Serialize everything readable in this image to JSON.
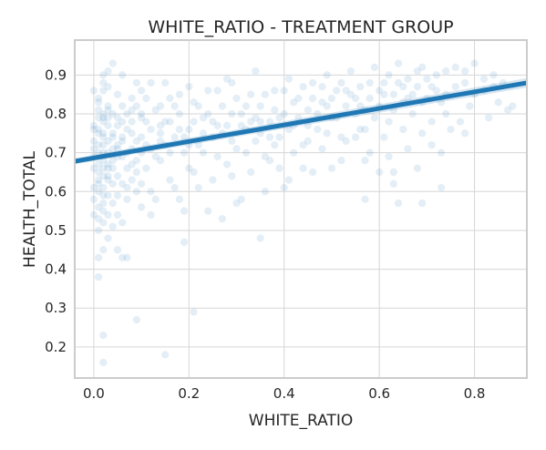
{
  "chart_data": {
    "type": "scatter",
    "title": "WHITE_RATIO - TREATMENT GROUP",
    "xlabel": "WHITE_RATIO",
    "ylabel": "HEALTH_TOTAL",
    "xlim": [
      -0.04,
      0.91
    ],
    "ylim": [
      0.12,
      0.99
    ],
    "xticks": [
      0.0,
      0.2,
      0.4,
      0.6,
      0.8
    ],
    "xtick_labels": [
      "0.0",
      "0.2",
      "0.4",
      "0.6",
      "0.8"
    ],
    "yticks": [
      0.2,
      0.3,
      0.4,
      0.5,
      0.6,
      0.7,
      0.8,
      0.9
    ],
    "ytick_labels": [
      "0.2",
      "0.3",
      "0.4",
      "0.5",
      "0.6",
      "0.7",
      "0.8",
      "0.9"
    ],
    "grid": true,
    "point_color": "#1f77b4",
    "point_alpha": 0.12,
    "line_color": "#1f77b4",
    "regression": {
      "x": [
        -0.04,
        0.91
      ],
      "y": [
        0.678,
        0.88
      ]
    },
    "points": [
      [
        0.01,
        0.76
      ],
      [
        0.02,
        0.74
      ],
      [
        0.01,
        0.72
      ],
      [
        0.03,
        0.7
      ],
      [
        0.02,
        0.68
      ],
      [
        0.0,
        0.73
      ],
      [
        0.01,
        0.65
      ],
      [
        0.03,
        0.77
      ],
      [
        0.02,
        0.8
      ],
      [
        0.01,
        0.62
      ],
      [
        0.0,
        0.58
      ],
      [
        0.02,
        0.55
      ],
      [
        0.01,
        0.6
      ],
      [
        0.03,
        0.66
      ],
      [
        0.04,
        0.71
      ],
      [
        0.02,
        0.78
      ],
      [
        0.01,
        0.83
      ],
      [
        0.0,
        0.69
      ],
      [
        0.03,
        0.63
      ],
      [
        0.02,
        0.57
      ],
      [
        0.01,
        0.53
      ],
      [
        0.04,
        0.75
      ],
      [
        0.05,
        0.72
      ],
      [
        0.03,
        0.82
      ],
      [
        0.02,
        0.86
      ],
      [
        0.01,
        0.7
      ],
      [
        0.0,
        0.66
      ],
      [
        0.02,
        0.64
      ],
      [
        0.03,
        0.59
      ],
      [
        0.01,
        0.56
      ],
      [
        0.04,
        0.68
      ],
      [
        0.05,
        0.79
      ],
      [
        0.06,
        0.74
      ],
      [
        0.02,
        0.72
      ],
      [
        0.01,
        0.79
      ],
      [
        0.0,
        0.76
      ],
      [
        0.03,
        0.73
      ],
      [
        0.02,
        0.61
      ],
      [
        0.04,
        0.57
      ],
      [
        0.05,
        0.64
      ],
      [
        0.06,
        0.69
      ],
      [
        0.07,
        0.76
      ],
      [
        0.08,
        0.81
      ],
      [
        0.03,
        0.87
      ],
      [
        0.02,
        0.9
      ],
      [
        0.01,
        0.84
      ],
      [
        0.06,
        0.62
      ],
      [
        0.07,
        0.58
      ],
      [
        0.05,
        0.54
      ],
      [
        0.04,
        0.51
      ],
      [
        0.03,
        0.48
      ],
      [
        0.02,
        0.45
      ],
      [
        0.01,
        0.43
      ],
      [
        0.06,
        0.43
      ],
      [
        0.07,
        0.43
      ],
      [
        0.05,
        0.45
      ],
      [
        0.08,
        0.67
      ],
      [
        0.09,
        0.73
      ],
      [
        0.1,
        0.79
      ],
      [
        0.11,
        0.84
      ],
      [
        0.09,
        0.88
      ],
      [
        0.1,
        0.7
      ],
      [
        0.12,
        0.76
      ],
      [
        0.11,
        0.66
      ],
      [
        0.13,
        0.81
      ],
      [
        0.14,
        0.73
      ],
      [
        0.12,
        0.6
      ],
      [
        0.1,
        0.56
      ],
      [
        0.15,
        0.78
      ],
      [
        0.16,
        0.84
      ],
      [
        0.14,
        0.68
      ],
      [
        0.17,
        0.74
      ],
      [
        0.18,
        0.8
      ],
      [
        0.16,
        0.63
      ],
      [
        0.19,
        0.7
      ],
      [
        0.2,
        0.76
      ],
      [
        0.18,
        0.58
      ],
      [
        0.15,
        0.88
      ],
      [
        0.21,
        0.83
      ],
      [
        0.22,
        0.72
      ],
      [
        0.2,
        0.66
      ],
      [
        0.23,
        0.79
      ],
      [
        0.24,
        0.86
      ],
      [
        0.22,
        0.61
      ],
      [
        0.25,
        0.74
      ],
      [
        0.26,
        0.69
      ],
      [
        0.24,
        0.55
      ],
      [
        0.27,
        0.82
      ],
      [
        0.28,
        0.77
      ],
      [
        0.29,
        0.88
      ],
      [
        0.3,
        0.71
      ],
      [
        0.31,
        0.8
      ],
      [
        0.29,
        0.64
      ],
      [
        0.32,
        0.76
      ],
      [
        0.33,
        0.85
      ],
      [
        0.31,
        0.58
      ],
      [
        0.34,
        0.73
      ],
      [
        0.35,
        0.82
      ],
      [
        0.36,
        0.69
      ],
      [
        0.34,
        0.91
      ],
      [
        0.37,
        0.78
      ],
      [
        0.38,
        0.86
      ],
      [
        0.39,
        0.74
      ],
      [
        0.4,
        0.8
      ],
      [
        0.41,
        0.89
      ],
      [
        0.39,
        0.66
      ],
      [
        0.42,
        0.77
      ],
      [
        0.43,
        0.84
      ],
      [
        0.44,
        0.72
      ],
      [
        0.45,
        0.81
      ],
      [
        0.46,
        0.88
      ],
      [
        0.47,
        0.76
      ],
      [
        0.48,
        0.83
      ],
      [
        0.49,
        0.9
      ],
      [
        0.5,
        0.79
      ],
      [
        0.51,
        0.86
      ],
      [
        0.52,
        0.74
      ],
      [
        0.53,
        0.82
      ],
      [
        0.54,
        0.91
      ],
      [
        0.55,
        0.8
      ],
      [
        0.56,
        0.87
      ],
      [
        0.57,
        0.76
      ],
      [
        0.58,
        0.84
      ],
      [
        0.59,
        0.92
      ],
      [
        0.6,
        0.82
      ],
      [
        0.61,
        0.88
      ],
      [
        0.62,
        0.78
      ],
      [
        0.63,
        0.85
      ],
      [
        0.64,
        0.93
      ],
      [
        0.65,
        0.83
      ],
      [
        0.66,
        0.89
      ],
      [
        0.67,
        0.8
      ],
      [
        0.68,
        0.87
      ],
      [
        0.69,
        0.92
      ],
      [
        0.7,
        0.84
      ],
      [
        0.72,
        0.9
      ],
      [
        0.74,
        0.85
      ],
      [
        0.76,
        0.92
      ],
      [
        0.78,
        0.88
      ],
      [
        0.8,
        0.93
      ],
      [
        0.82,
        0.86
      ],
      [
        0.84,
        0.9
      ],
      [
        0.86,
        0.88
      ],
      [
        0.88,
        0.82
      ],
      [
        0.75,
        0.76
      ],
      [
        0.71,
        0.72
      ],
      [
        0.66,
        0.71
      ],
      [
        0.62,
        0.69
      ],
      [
        0.58,
        0.7
      ],
      [
        0.55,
        0.74
      ],
      [
        0.52,
        0.68
      ],
      [
        0.48,
        0.71
      ],
      [
        0.44,
        0.66
      ],
      [
        0.41,
        0.63
      ],
      [
        0.37,
        0.68
      ],
      [
        0.33,
        0.65
      ],
      [
        0.28,
        0.67
      ],
      [
        0.25,
        0.63
      ],
      [
        0.21,
        0.65
      ],
      [
        0.17,
        0.61
      ],
      [
        0.13,
        0.58
      ],
      [
        0.09,
        0.6
      ],
      [
        0.06,
        0.52
      ],
      [
        0.12,
        0.54
      ],
      [
        0.19,
        0.55
      ],
      [
        0.27,
        0.53
      ],
      [
        0.3,
        0.57
      ],
      [
        0.36,
        0.6
      ],
      [
        0.4,
        0.61
      ],
      [
        0.46,
        0.65
      ],
      [
        0.5,
        0.66
      ],
      [
        0.57,
        0.68
      ],
      [
        0.6,
        0.65
      ],
      [
        0.63,
        0.62
      ],
      [
        0.68,
        0.66
      ],
      [
        0.73,
        0.7
      ],
      [
        0.78,
        0.75
      ],
      [
        0.83,
        0.79
      ],
      [
        0.87,
        0.81
      ],
      [
        0.85,
        0.83
      ],
      [
        0.79,
        0.82
      ],
      [
        0.77,
        0.78
      ],
      [
        0.74,
        0.8
      ],
      [
        0.71,
        0.78
      ],
      [
        0.69,
        0.75
      ],
      [
        0.65,
        0.76
      ],
      [
        0.61,
        0.74
      ],
      [
        0.56,
        0.76
      ],
      [
        0.53,
        0.73
      ],
      [
        0.49,
        0.75
      ],
      [
        0.45,
        0.73
      ],
      [
        0.42,
        0.7
      ],
      [
        0.38,
        0.72
      ],
      [
        0.35,
        0.75
      ],
      [
        0.32,
        0.7
      ],
      [
        0.29,
        0.73
      ],
      [
        0.26,
        0.77
      ],
      [
        0.23,
        0.7
      ],
      [
        0.2,
        0.72
      ],
      [
        0.16,
        0.7
      ],
      [
        0.14,
        0.75
      ],
      [
        0.11,
        0.72
      ],
      [
        0.08,
        0.71
      ],
      [
        0.07,
        0.66
      ],
      [
        0.05,
        0.69
      ],
      [
        0.04,
        0.62
      ],
      [
        0.03,
        0.54
      ],
      [
        0.02,
        0.52
      ],
      [
        0.01,
        0.5
      ],
      [
        0.0,
        0.54
      ],
      [
        0.06,
        0.78
      ],
      [
        0.08,
        0.84
      ],
      [
        0.1,
        0.86
      ],
      [
        0.12,
        0.88
      ],
      [
        0.14,
        0.82
      ],
      [
        0.16,
        0.78
      ],
      [
        0.18,
        0.85
      ],
      [
        0.2,
        0.87
      ],
      [
        0.22,
        0.82
      ],
      [
        0.24,
        0.8
      ],
      [
        0.26,
        0.86
      ],
      [
        0.28,
        0.89
      ],
      [
        0.3,
        0.84
      ],
      [
        0.32,
        0.82
      ],
      [
        0.34,
        0.79
      ],
      [
        0.36,
        0.85
      ],
      [
        0.38,
        0.81
      ],
      [
        0.4,
        0.86
      ],
      [
        0.42,
        0.83
      ],
      [
        0.44,
        0.87
      ],
      [
        0.46,
        0.84
      ],
      [
        0.48,
        0.87
      ],
      [
        0.5,
        0.84
      ],
      [
        0.52,
        0.88
      ],
      [
        0.54,
        0.85
      ],
      [
        0.56,
        0.82
      ],
      [
        0.58,
        0.88
      ],
      [
        0.6,
        0.86
      ],
      [
        0.62,
        0.9
      ],
      [
        0.64,
        0.88
      ],
      [
        0.66,
        0.84
      ],
      [
        0.68,
        0.91
      ],
      [
        0.7,
        0.89
      ],
      [
        0.72,
        0.86
      ],
      [
        0.74,
        0.91
      ],
      [
        0.76,
        0.87
      ],
      [
        0.78,
        0.91
      ],
      [
        0.8,
        0.85
      ],
      [
        0.82,
        0.89
      ],
      [
        0.84,
        0.87
      ],
      [
        0.01,
        0.38
      ],
      [
        0.02,
        0.23
      ],
      [
        0.02,
        0.16
      ],
      [
        0.09,
        0.27
      ],
      [
        0.15,
        0.18
      ],
      [
        0.21,
        0.29
      ],
      [
        0.19,
        0.47
      ],
      [
        0.35,
        0.48
      ],
      [
        0.57,
        0.58
      ],
      [
        0.64,
        0.57
      ],
      [
        0.69,
        0.57
      ],
      [
        0.63,
        0.65
      ],
      [
        0.73,
        0.61
      ],
      [
        0.04,
        0.8
      ],
      [
        0.05,
        0.85
      ],
      [
        0.03,
        0.91
      ],
      [
        0.04,
        0.93
      ],
      [
        0.0,
        0.86
      ],
      [
        0.02,
        0.88
      ],
      [
        0.06,
        0.9
      ],
      [
        0.03,
        0.67
      ],
      [
        0.04,
        0.74
      ],
      [
        0.05,
        0.77
      ],
      [
        0.02,
        0.7
      ],
      [
        0.01,
        0.67
      ],
      [
        0.0,
        0.71
      ],
      [
        0.03,
        0.79
      ],
      [
        0.02,
        0.75
      ],
      [
        0.04,
        0.66
      ],
      [
        0.05,
        0.71
      ],
      [
        0.06,
        0.73
      ],
      [
        0.07,
        0.7
      ],
      [
        0.08,
        0.75
      ],
      [
        0.09,
        0.68
      ],
      [
        0.1,
        0.74
      ],
      [
        0.11,
        0.78
      ],
      [
        0.12,
        0.71
      ],
      [
        0.13,
        0.69
      ],
      [
        0.14,
        0.77
      ],
      [
        0.15,
        0.72
      ],
      [
        0.01,
        0.75
      ],
      [
        0.02,
        0.79
      ],
      [
        0.03,
        0.81
      ],
      [
        0.01,
        0.81
      ],
      [
        0.0,
        0.77
      ],
      [
        0.02,
        0.66
      ],
      [
        0.03,
        0.64
      ],
      [
        0.01,
        0.63
      ],
      [
        0.0,
        0.61
      ],
      [
        0.02,
        0.59
      ],
      [
        0.07,
        0.8
      ],
      [
        0.08,
        0.78
      ],
      [
        0.09,
        0.82
      ],
      [
        0.1,
        0.8
      ],
      [
        0.06,
        0.82
      ],
      [
        0.05,
        0.59
      ],
      [
        0.07,
        0.61
      ],
      [
        0.08,
        0.63
      ],
      [
        0.09,
        0.65
      ],
      [
        0.1,
        0.62
      ],
      [
        0.17,
        0.82
      ],
      [
        0.18,
        0.76
      ],
      [
        0.19,
        0.74
      ],
      [
        0.21,
        0.78
      ],
      [
        0.23,
        0.75
      ],
      [
        0.25,
        0.78
      ],
      [
        0.27,
        0.75
      ],
      [
        0.29,
        0.8
      ],
      [
        0.31,
        0.77
      ],
      [
        0.33,
        0.78
      ],
      [
        0.35,
        0.78
      ],
      [
        0.37,
        0.74
      ],
      [
        0.39,
        0.79
      ],
      [
        0.41,
        0.76
      ],
      [
        0.43,
        0.79
      ],
      [
        0.45,
        0.77
      ],
      [
        0.47,
        0.8
      ],
      [
        0.49,
        0.82
      ],
      [
        0.51,
        0.79
      ],
      [
        0.53,
        0.86
      ],
      [
        0.55,
        0.84
      ],
      [
        0.57,
        0.81
      ],
      [
        0.59,
        0.79
      ],
      [
        0.61,
        0.85
      ],
      [
        0.63,
        0.81
      ],
      [
        0.65,
        0.87
      ],
      [
        0.67,
        0.85
      ],
      [
        0.69,
        0.83
      ],
      [
        0.71,
        0.87
      ],
      [
        0.73,
        0.83
      ]
    ]
  }
}
